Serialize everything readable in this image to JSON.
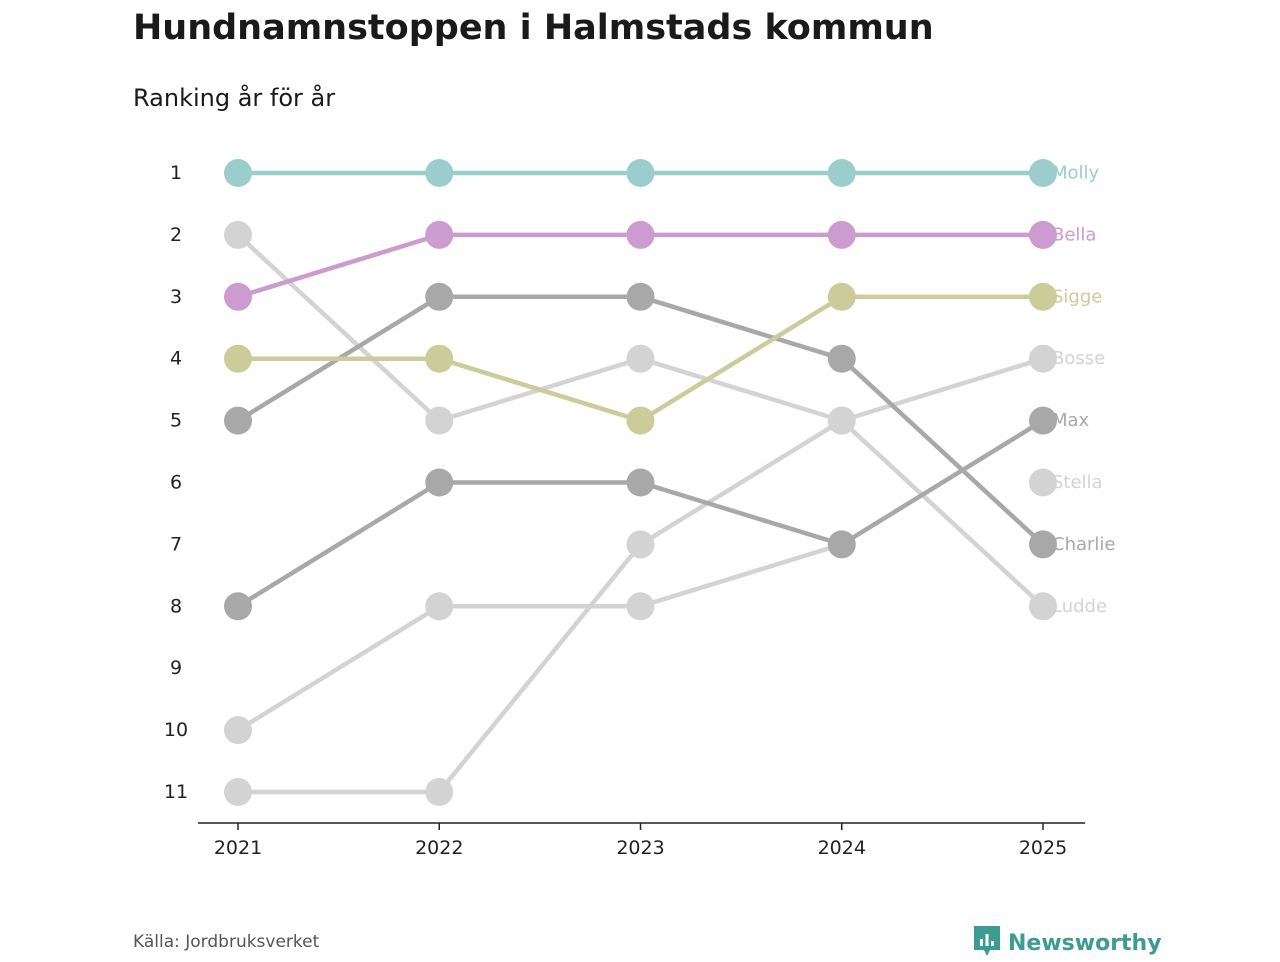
{
  "header": {
    "title": "Hundnamnstoppen i Halmstads kommun",
    "subtitle": "Ranking år för år"
  },
  "footer": {
    "source": "Källa: Jordbruksverket",
    "brand": "Newsworthy"
  },
  "icons": {
    "brand_logo": "bar-chart-speech-bubble-icon"
  },
  "chart_data": {
    "type": "line",
    "title": "Hundnamnstoppen i Halmstads kommun",
    "subtitle": "Ranking år för år",
    "xlabel": "",
    "ylabel": "",
    "x": [
      "2021",
      "2022",
      "2023",
      "2024",
      "2025"
    ],
    "y_ticks": [
      "1",
      "2",
      "3",
      "4",
      "5",
      "6",
      "7",
      "8",
      "9",
      "10",
      "11"
    ],
    "ylim": [
      1,
      11
    ],
    "y_inverted": true,
    "series": [
      {
        "name": "Molly",
        "ranks": [
          1,
          1,
          1,
          1,
          1
        ],
        "color": "#9acdcc"
      },
      {
        "name": "Bella",
        "ranks": [
          3,
          2,
          2,
          2,
          2
        ],
        "color": "#cc9bd0"
      },
      {
        "name": "Sigge",
        "ranks": [
          4,
          4,
          5,
          3,
          3
        ],
        "color": "#cccc9a"
      },
      {
        "name": "Bosse",
        "ranks": [
          11,
          11,
          7,
          5,
          4
        ],
        "color": "#d3d3d3"
      },
      {
        "name": "Max",
        "ranks": [
          8,
          6,
          6,
          7,
          5
        ],
        "color": "#a8a8a8"
      },
      {
        "name": "Stella",
        "ranks": [
          null,
          null,
          null,
          null,
          6
        ],
        "color": "#d3d3d3"
      },
      {
        "name": "Charlie",
        "ranks": [
          5,
          3,
          3,
          4,
          7
        ],
        "color": "#a8a8a8"
      },
      {
        "name": "Ludde",
        "ranks": [
          2,
          5,
          4,
          5,
          8
        ],
        "color": "#d3d3d3"
      },
      {
        "name": "",
        "ranks": [
          10,
          8,
          8,
          7,
          null
        ],
        "color": "#d3d3d3"
      }
    ]
  }
}
